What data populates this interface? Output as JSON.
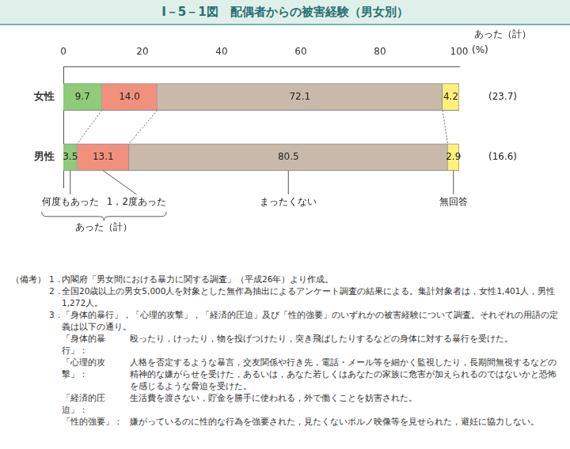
{
  "chart_data": {
    "type": "bar",
    "title": "Ⅰ－5－1図　配偶者からの被害経験（男女別）",
    "orientation": "horizontal",
    "stacked": true,
    "data_labels": true,
    "grid": false,
    "categories": [
      "女性",
      "男性"
    ],
    "series": [
      {
        "name": "何度もあった",
        "color": "#8fcb78",
        "values": [
          9.7,
          3.5
        ],
        "value_labels": [
          "9.7",
          "3.5"
        ]
      },
      {
        "name": "1，2度あった",
        "color": "#f2907e",
        "values": [
          14.0,
          13.1
        ],
        "value_labels": [
          "14.0",
          "13.1"
        ]
      },
      {
        "name": "まったくない",
        "color": "#c9b9aa",
        "values": [
          72.1,
          80.5
        ],
        "value_labels": [
          "72.1",
          "80.5"
        ]
      },
      {
        "name": "無回答",
        "color": "#fff07a",
        "values": [
          4.2,
          2.9
        ],
        "value_labels": [
          "4.2",
          "2.9"
        ]
      }
    ],
    "xlim": [
      0,
      100
    ],
    "xticks": [
      0,
      20,
      40,
      60,
      80,
      100
    ],
    "x_label": "(%)",
    "totals": {
      "label": "あった（計）",
      "values": [
        23.7,
        16.6
      ],
      "value_labels": [
        "(23.7)",
        "(16.6)"
      ]
    }
  },
  "notes": {
    "label": "（備考）",
    "items": [
      {
        "number": "1．",
        "text": "内閣府「男女間における暴力に関する調査」（平成26年）より作成。"
      },
      {
        "number": "2．",
        "text": "全国20歳以上の男女5,000人を対象とした無作為抽出によるアンケート調査の結果による。集計対象者は，女性1,401人，男性1,272人。"
      },
      {
        "number": "3．",
        "text": "「身体的暴行」，「心理的攻撃」，「経済的圧迫」及び「性的強要」のいずれかの被害経験について調査。それぞれの用語の定義は以下の通り。"
      }
    ],
    "definitions": [
      {
        "term": "「身体的暴行」：",
        "text": "殴ったり，けったり，物を投げつけたり，突き飛ばしたりするなどの身体に対する暴行を受けた。"
      },
      {
        "term": "「心理的攻撃」：",
        "text": "人格を否定するような暴言，交友関係や行き先，電話・メール等を細かく監視したり，長期間無視するなどの精神的な嫌がらせを受けた，あるいは，あなた若しくはあなたの家族に危害が加えられるのではないかと恐怖を感じるような脅迫を受けた。"
      },
      {
        "term": "「経済的圧迫」：",
        "text": "生活費を渡さない，貯金を勝手に使われる，外で働くことを妨害された。"
      },
      {
        "term": "「性的強要」：",
        "text": "嫌がっているのに性的な行為を強要された，見たくないポルノ映像等を見せられた，避妊に協力しない。"
      }
    ]
  }
}
